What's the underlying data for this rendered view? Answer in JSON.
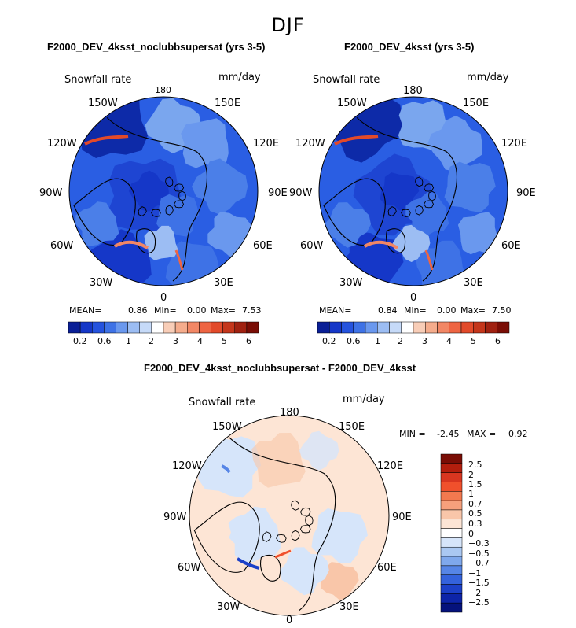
{
  "chart_data": [
    {
      "type": "heatmap",
      "title": "F2000_DEV_4ksst_noclubbsupersat (yrs 3-5)",
      "variable_label": "Snowfall rate",
      "units": "mm/day",
      "projection": "north polar stereographic",
      "longitude_labels": [
        "180",
        "150E",
        "120E",
        "90E",
        "60E",
        "30E",
        "0",
        "30W",
        "60W",
        "90W",
        "120W",
        "150W"
      ],
      "stats": {
        "mean_label": "MEAN=",
        "mean": "0.86",
        "min_label": "Min=",
        "min": "0.00",
        "max_label": "Max=",
        "max": "7.53"
      },
      "colorbar_ticks": [
        "0.2",
        "0.6",
        "1",
        "2",
        "3",
        "4",
        "5",
        "6"
      ],
      "colorbar_colors": [
        "#0a1f96",
        "#1537c8",
        "#2553de",
        "#3e72e6",
        "#6a98ee",
        "#9cbdf3",
        "#c6daf8",
        "#ffffff",
        "#f8cdb7",
        "#f5ac8c",
        "#f28765",
        "#ee6543",
        "#e24a2a",
        "#c4361b",
        "#a02110",
        "#7a0d05"
      ]
    },
    {
      "type": "heatmap",
      "title": "F2000_DEV_4ksst (yrs 3-5)",
      "variable_label": "Snowfall rate",
      "units": "mm/day",
      "projection": "north polar stereographic",
      "longitude_labels": [
        "180",
        "150E",
        "120E",
        "90E",
        "60E",
        "30E",
        "0",
        "30W",
        "60W",
        "90W",
        "120W",
        "150W"
      ],
      "stats": {
        "mean_label": "MEAN=",
        "mean": "0.84",
        "min_label": "Min=",
        "min": "0.00",
        "max_label": "Max=",
        "max": "7.50"
      },
      "colorbar_ticks": [
        "0.2",
        "0.6",
        "1",
        "2",
        "3",
        "4",
        "5",
        "6"
      ],
      "colorbar_colors": [
        "#0a1f96",
        "#1537c8",
        "#2553de",
        "#3e72e6",
        "#6a98ee",
        "#9cbdf3",
        "#c6daf8",
        "#ffffff",
        "#f8cdb7",
        "#f5ac8c",
        "#f28765",
        "#ee6543",
        "#e24a2a",
        "#c4361b",
        "#a02110",
        "#7a0d05"
      ]
    },
    {
      "type": "heatmap",
      "title": "F2000_DEV_4ksst_noclubbsupersat - F2000_DEV_4ksst",
      "variable_label": "Snowfall rate",
      "units": "mm/day",
      "projection": "north polar stereographic",
      "longitude_labels": [
        "180",
        "150E",
        "120E",
        "90E",
        "60E",
        "30E",
        "0",
        "30W",
        "60W",
        "90W",
        "120W",
        "150W"
      ],
      "stats": {
        "min_label": "MIN =",
        "min": "-2.45",
        "max_label": "MAX =",
        "max": "0.92"
      },
      "colorbar_ticks": [
        "2.5",
        "2",
        "1.5",
        "1",
        "0.7",
        "0.5",
        "0.3",
        "0",
        "−0.3",
        "−0.5",
        "−0.7",
        "−1",
        "−1.5",
        "−2",
        "−2.5"
      ],
      "colorbar_colors": [
        "#7a0d05",
        "#b31e0d",
        "#d83620",
        "#f0502c",
        "#f3794f",
        "#f6a07c",
        "#f9c6a9",
        "#fde5d5",
        "#ffffff",
        "#d6e5fa",
        "#aac8f2",
        "#7fa8ec",
        "#5685e6",
        "#3462dc",
        "#1c40c8",
        "#0d24a8",
        "#05127c"
      ]
    }
  ],
  "page": {
    "supertitle": "DJF"
  }
}
